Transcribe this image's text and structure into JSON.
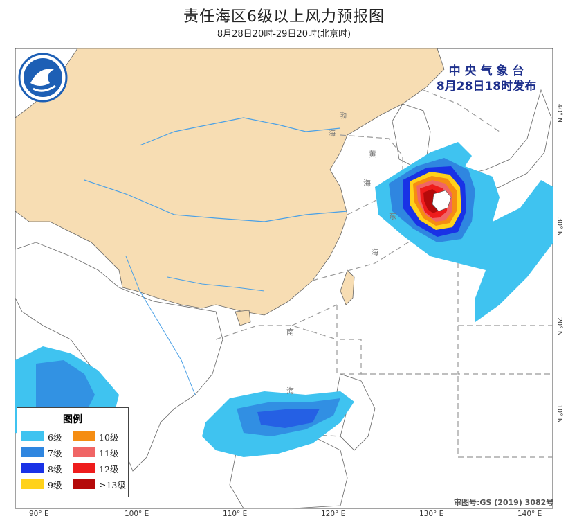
{
  "title": "责任海区6级以上风力预报图",
  "subtitle": "8月28日20时-29日20时(北京时)",
  "issuer": {
    "line1": "中 央 气 象 台",
    "line2": "8月28日18时发布"
  },
  "logo": {
    "icon": "cma-logo-icon"
  },
  "legend": {
    "title": "图例",
    "items": [
      {
        "label": "6级",
        "color": "#3fc3f0"
      },
      {
        "label": "10级",
        "color": "#f58d12"
      },
      {
        "label": "7级",
        "color": "#2f86e0"
      },
      {
        "label": "11级",
        "color": "#f06565"
      },
      {
        "label": "8级",
        "color": "#1932e6"
      },
      {
        "label": "12级",
        "color": "#ee1c1c"
      },
      {
        "label": "9级",
        "color": "#ffd21a"
      },
      {
        "label": "≥13级",
        "color": "#b50a0a"
      }
    ]
  },
  "approval": "审图号:GS (2019) 3082号",
  "lon_ticks": [
    "90° E",
    "100° E",
    "110° E",
    "120° E",
    "130° E",
    "140° E"
  ],
  "lat_ticks": [
    "10° N",
    "20° N",
    "30° N",
    "40° N"
  ],
  "sea_labels": [
    "渤",
    "海",
    "黄",
    "海",
    "东",
    "海",
    "南",
    "海"
  ],
  "colors": {
    "land": "#f7ddb3",
    "sea": "#ffffff",
    "rivers": "#4aa0e6",
    "border": "#555555"
  }
}
